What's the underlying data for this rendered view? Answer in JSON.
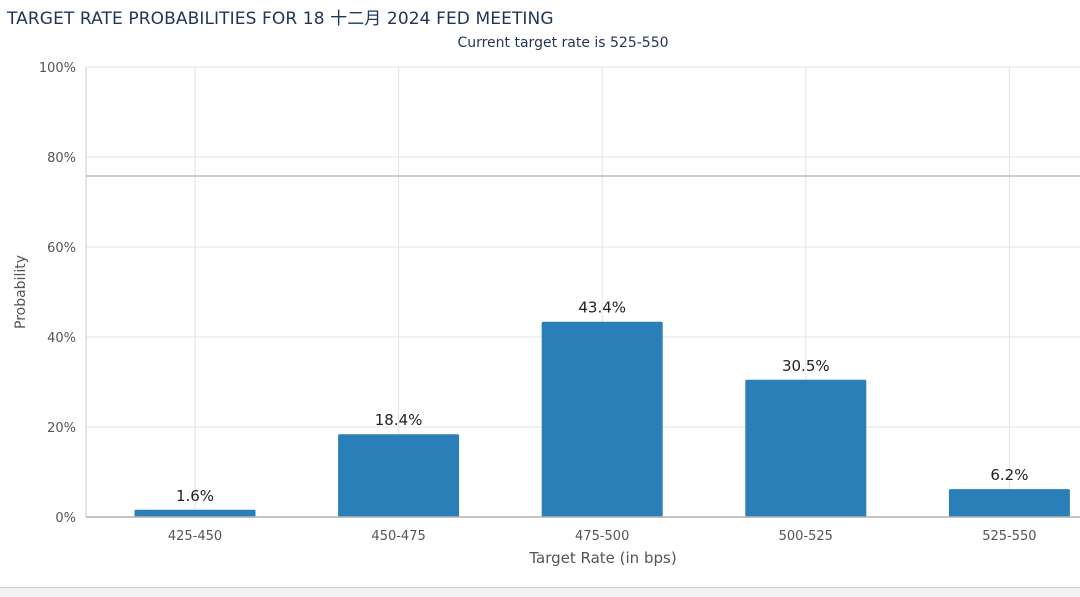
{
  "chart_data": {
    "type": "bar",
    "title": "TARGET RATE PROBABILITIES FOR 18 十二月 2024 FED MEETING",
    "subtitle": "Current target rate is 525-550",
    "xlabel": "Target Rate (in bps)",
    "ylabel": "Probability",
    "categories": [
      "425-450",
      "450-475",
      "475-500",
      "500-525",
      "525-550"
    ],
    "values": [
      1.6,
      18.4,
      43.4,
      30.5,
      6.2
    ],
    "data_labels": [
      "1.6%",
      "18.4%",
      "43.4%",
      "30.5%",
      "6.2%"
    ],
    "ylim": [
      0,
      100
    ],
    "yticks": [
      0,
      20,
      40,
      60,
      80,
      100
    ],
    "ytick_labels": [
      "0%",
      "20%",
      "40%",
      "60%",
      "80%",
      "100%"
    ],
    "grid": true,
    "legend": "none",
    "bar_color": "#2a7fb8"
  }
}
